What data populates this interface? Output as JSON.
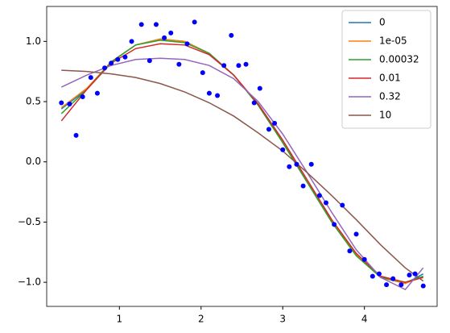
{
  "chart_data": {
    "type": "line",
    "xlim": [
      0.11,
      4.89
    ],
    "ylim": [
      -1.2,
      1.29
    ],
    "xticks": [
      1,
      2,
      3,
      4
    ],
    "yticks": [
      {
        "value": -1,
        "label": "−1.0"
      },
      {
        "value": -0.5,
        "label": "−0.5"
      },
      {
        "value": 0,
        "label": "0.0"
      },
      0.5,
      {
        "value": 1,
        "label": "1.0"
      }
    ],
    "legend": "upper right",
    "points": {
      "color": "#0000ff",
      "x": [
        0.29,
        0.39,
        0.47,
        0.55,
        0.65,
        0.73,
        0.82,
        0.9,
        0.98,
        1.07,
        1.15,
        1.27,
        1.37,
        1.45,
        1.55,
        1.63,
        1.73,
        1.83,
        1.92,
        2.02,
        2.1,
        2.2,
        2.28,
        2.37,
        2.46,
        2.55,
        2.65,
        2.72,
        2.83,
        2.9,
        3.0,
        3.08,
        3.17,
        3.25,
        3.35,
        3.45,
        3.53,
        3.63,
        3.73,
        3.82,
        3.9,
        4.0,
        4.1,
        4.18,
        4.27,
        4.35,
        4.45,
        4.55,
        4.62,
        4.72
      ],
      "y": [
        0.49,
        0.48,
        0.22,
        0.54,
        0.7,
        0.57,
        0.78,
        0.82,
        0.85,
        0.87,
        1.0,
        1.14,
        0.84,
        1.14,
        1.03,
        1.07,
        0.81,
        0.98,
        1.16,
        0.74,
        0.57,
        0.55,
        0.8,
        1.05,
        0.8,
        0.81,
        0.49,
        0.61,
        0.27,
        0.32,
        0.1,
        -0.04,
        -0.02,
        -0.2,
        -0.02,
        -0.28,
        -0.34,
        -0.52,
        -0.36,
        -0.74,
        -0.6,
        -0.81,
        -0.95,
        -0.93,
        -1.02,
        -0.97,
        -1.02,
        -0.94,
        -0.93,
        -1.03
      ]
    },
    "x": [
      0.29,
      0.6,
      0.9,
      1.2,
      1.5,
      1.8,
      2.1,
      2.4,
      2.7,
      3.0,
      3.3,
      3.6,
      3.9,
      4.2,
      4.5,
      4.72
    ],
    "series": [
      {
        "name": "0",
        "color": "#1f77b4",
        "values": [
          0.44,
          0.6,
          0.83,
          0.97,
          1.02,
          1.0,
          0.9,
          0.72,
          0.47,
          0.16,
          -0.17,
          -0.5,
          -0.77,
          -0.96,
          -1.01,
          -0.93
        ]
      },
      {
        "name": "1e-05",
        "color": "#ff7f0e",
        "values": [
          0.45,
          0.61,
          0.83,
          0.97,
          1.02,
          1.0,
          0.9,
          0.72,
          0.47,
          0.16,
          -0.17,
          -0.49,
          -0.77,
          -0.96,
          -1.01,
          -0.95
        ]
      },
      {
        "name": "0.00032",
        "color": "#2ca02c",
        "values": [
          0.4,
          0.6,
          0.83,
          0.97,
          1.01,
          0.99,
          0.9,
          0.72,
          0.47,
          0.16,
          -0.17,
          -0.5,
          -0.78,
          -0.96,
          -1.0,
          -0.95
        ]
      },
      {
        "name": "0.01",
        "color": "#d62728",
        "values": [
          0.34,
          0.6,
          0.82,
          0.94,
          0.98,
          0.97,
          0.89,
          0.72,
          0.48,
          0.18,
          -0.15,
          -0.48,
          -0.76,
          -0.95,
          -1.0,
          -0.96
        ]
      },
      {
        "name": "0.32",
        "color": "#9467bd",
        "values": [
          0.62,
          0.72,
          0.8,
          0.85,
          0.86,
          0.85,
          0.8,
          0.69,
          0.5,
          0.23,
          -0.09,
          -0.42,
          -0.73,
          -0.96,
          -1.06,
          -0.88
        ]
      },
      {
        "name": "10",
        "color": "#8c564b",
        "values": [
          0.76,
          0.75,
          0.73,
          0.7,
          0.65,
          0.58,
          0.49,
          0.38,
          0.24,
          0.09,
          -0.09,
          -0.28,
          -0.48,
          -0.69,
          -0.88,
          -0.99
        ]
      }
    ]
  }
}
